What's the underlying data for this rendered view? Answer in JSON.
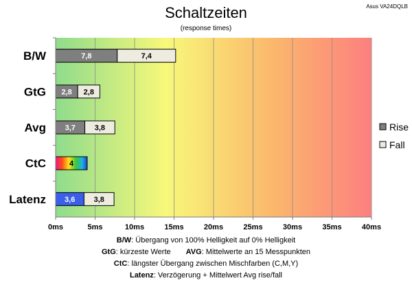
{
  "header": {
    "title": "Schaltzeiten",
    "subtitle": "(response times)",
    "brand": "Asus VA24DQLB"
  },
  "colors": {
    "rise": "#7f7f7f",
    "fall": "#eeece1",
    "latenz_rise": "#3a5fe8",
    "gradient": [
      "#8fdc8c",
      "#f8f87a",
      "#fbb96c",
      "#fc7f7f"
    ]
  },
  "chart_data": {
    "type": "bar",
    "orientation": "horizontal",
    "stacked": true,
    "categories": [
      "B/W",
      "GtG",
      "Avg",
      "CtC",
      "Latenz"
    ],
    "series": [
      {
        "name": "Rise",
        "values": [
          7.8,
          2.8,
          3.7,
          4,
          3.6
        ]
      },
      {
        "name": "Fall",
        "values": [
          7.4,
          2.8,
          3.8,
          null,
          3.8
        ]
      }
    ],
    "value_labels": {
      "Rise": [
        "7,8",
        "2,8",
        "3,7",
        "4",
        "3,6"
      ],
      "Fall": [
        "7,4",
        "2,8",
        "3,8",
        "",
        "3,8"
      ]
    },
    "xlim": [
      0,
      40
    ],
    "xticks": [
      0,
      5,
      10,
      15,
      20,
      25,
      30,
      35,
      40
    ],
    "xtick_labels": [
      "0ms",
      "5ms",
      "10ms",
      "15ms",
      "20ms",
      "25ms",
      "30ms",
      "35ms",
      "40ms"
    ],
    "grid": true,
    "legend": [
      "Rise",
      "Fall"
    ],
    "legend_position": "right"
  },
  "footnotes": [
    {
      "key": "B/W",
      "text": ":  Übergang von 100% Helligkeit auf 0% Helligkeit"
    },
    {
      "key": "GtG",
      "text": ": kürzeste  Werte",
      "key2": "AVG",
      "text2": ": Mittelwerte  an 15 Messpunkten"
    },
    {
      "key": "CtC",
      "text": ": längster Übergang  zwischen Mischfarben  (C,M,Y)"
    },
    {
      "key": "Latenz",
      "text": ": Verzögerung  + Mittelwert Avg rise/fall"
    }
  ]
}
